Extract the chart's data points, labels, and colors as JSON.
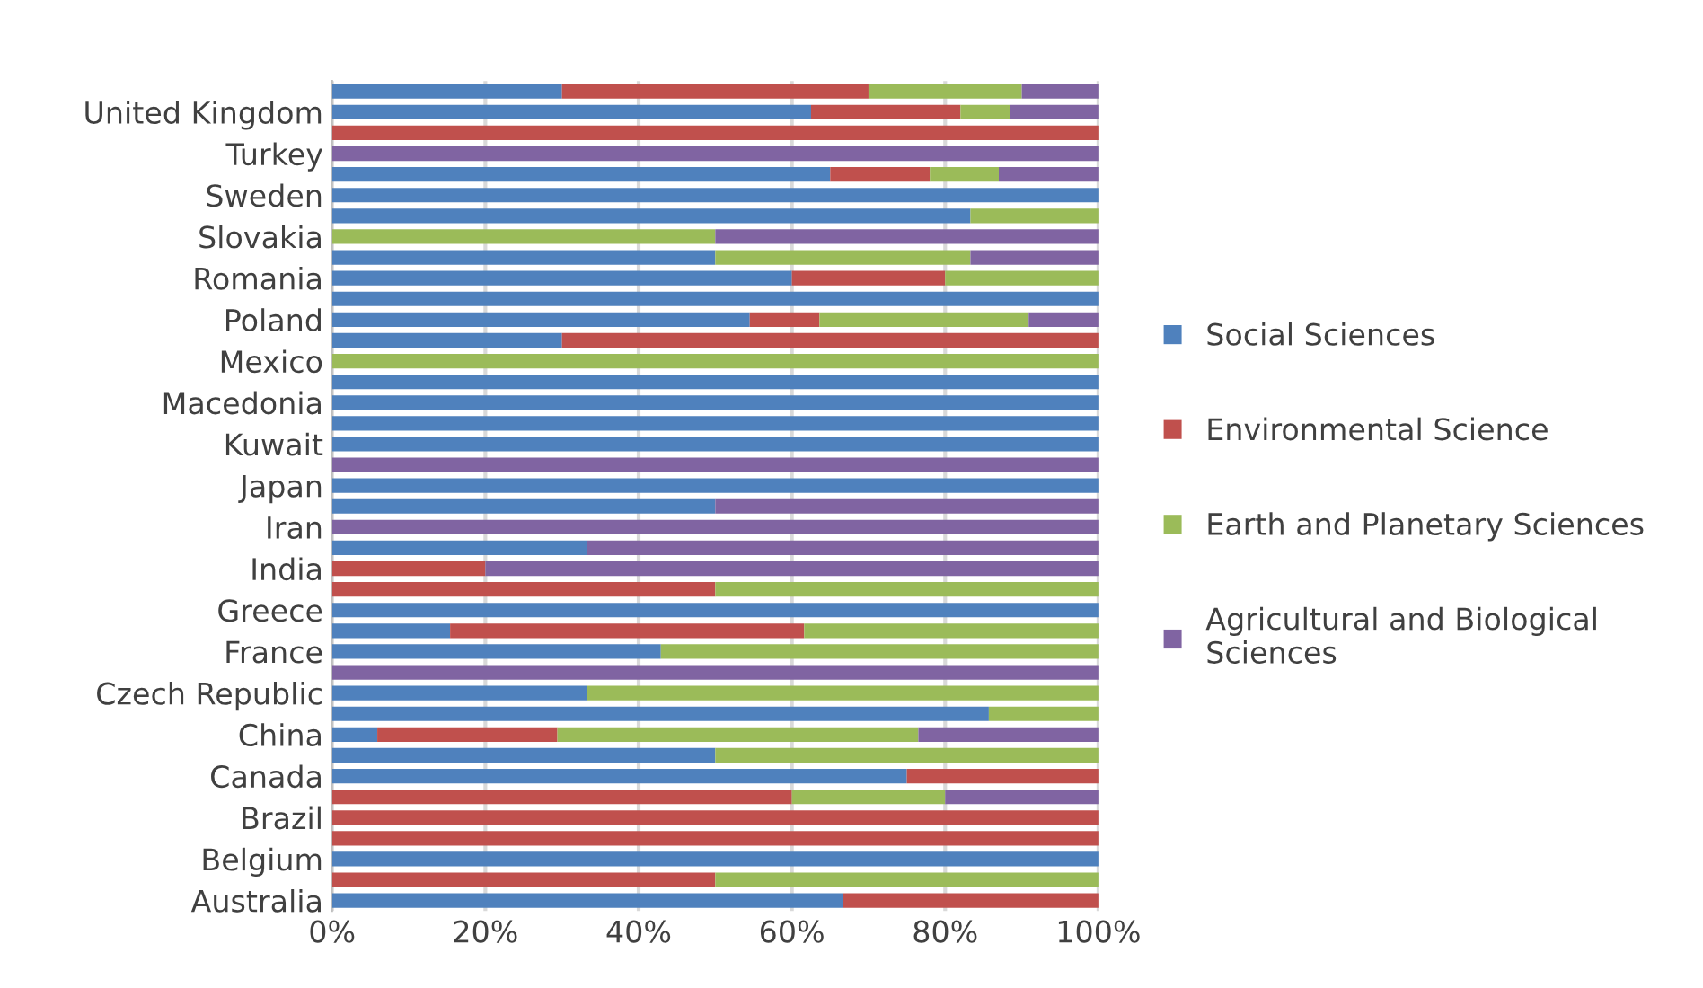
{
  "chart_data": {
    "type": "bar",
    "orientation": "horizontal",
    "stacked": true,
    "categories": [
      null,
      "United Kingdom",
      null,
      "Turkey",
      null,
      "Sweden",
      null,
      "Slovakia",
      null,
      "Romania",
      null,
      "Poland",
      null,
      "Mexico",
      null,
      "Macedonia",
      null,
      "Kuwait",
      null,
      "Japan",
      null,
      "Iran",
      null,
      "India",
      null,
      "Greece",
      null,
      "France",
      null,
      "Czech Republic",
      null,
      "China",
      null,
      "Canada",
      null,
      "Brazil",
      null,
      "Belgium",
      null,
      "Australia"
    ],
    "series": [
      {
        "name": "Social Sciences",
        "color": "#4f81bd",
        "values": [
          30,
          62.5,
          null,
          null,
          65,
          100,
          83.3,
          null,
          50,
          60,
          100,
          54.5,
          30,
          null,
          100,
          100,
          100,
          100,
          null,
          100,
          50,
          null,
          33.3,
          null,
          null,
          100,
          15.4,
          42.9,
          null,
          33.3,
          85.7,
          5.9,
          50,
          75,
          null,
          null,
          null,
          100,
          null,
          66.7
        ]
      },
      {
        "name": "Environmental Science",
        "color": "#c0504d",
        "values": [
          40,
          19.5,
          100,
          null,
          13,
          null,
          null,
          null,
          null,
          20,
          null,
          9.1,
          70,
          null,
          null,
          null,
          null,
          null,
          null,
          null,
          null,
          null,
          null,
          20,
          50,
          null,
          46.2,
          null,
          null,
          null,
          null,
          23.5,
          null,
          25,
          60,
          100,
          100,
          null,
          50,
          33.3
        ]
      },
      {
        "name": "Earth and Planetary Sciences",
        "color": "#9bbb59",
        "values": [
          20,
          6.5,
          null,
          null,
          9,
          null,
          16.7,
          50,
          33.3,
          20,
          null,
          27.3,
          null,
          100,
          null,
          null,
          null,
          null,
          null,
          null,
          null,
          null,
          null,
          null,
          50,
          null,
          38.5,
          57.1,
          null,
          66.7,
          14.3,
          47.1,
          50,
          null,
          20,
          null,
          null,
          null,
          50,
          null
        ]
      },
      {
        "name": "Agricultural and Biological\nSciences",
        "color": "#8064a2",
        "values": [
          10,
          11.5,
          null,
          100,
          13,
          null,
          null,
          50,
          16.7,
          null,
          null,
          9.1,
          null,
          null,
          null,
          null,
          null,
          null,
          100,
          null,
          50,
          100,
          66.7,
          80,
          null,
          null,
          null,
          null,
          100,
          null,
          null,
          23.5,
          null,
          null,
          20,
          null,
          null,
          null,
          null,
          null
        ]
      }
    ],
    "xlim": [
      0,
      100
    ],
    "xticks": [
      {
        "value": 0,
        "label": "0%"
      },
      {
        "value": 20,
        "label": "20%"
      },
      {
        "value": 40,
        "label": "40%"
      },
      {
        "value": 60,
        "label": "60%"
      },
      {
        "value": 80,
        "label": "80%"
      },
      {
        "value": 100,
        "label": "100%"
      }
    ],
    "grid": "x",
    "legend": "right"
  }
}
